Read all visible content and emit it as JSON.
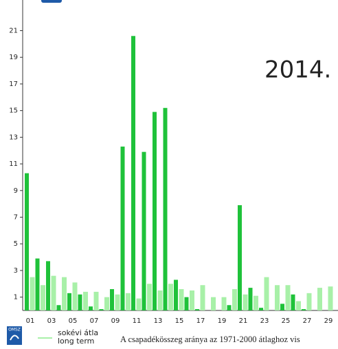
{
  "chart_data": {
    "type": "bar",
    "title": "2014.",
    "categories": [
      "01",
      null,
      "03",
      null,
      "05",
      null,
      "07",
      null,
      "09",
      null,
      "11",
      null,
      "13",
      null,
      "15",
      null,
      "17",
      null,
      "19",
      null,
      "21",
      null,
      "23",
      null,
      "25",
      null,
      "27",
      null,
      "29"
    ],
    "series": [
      {
        "color": "#1fc23a",
        "values": [
          10.3,
          3.9,
          3.7,
          0.4,
          1.3,
          1.2,
          0.3,
          0.1,
          1.6,
          12.3,
          20.6,
          11.9,
          14.9,
          15.2,
          2.3,
          1.0,
          0.1,
          0,
          0,
          0.4,
          7.9,
          1.7,
          0.2,
          0,
          0.5,
          1.2,
          0.1,
          0,
          0
        ]
      },
      {
        "color": "#a8f0a8",
        "values": [
          2.5,
          1.9,
          2.6,
          2.5,
          2.1,
          1.4,
          1.4,
          1.0,
          1.2,
          1.3,
          0.9,
          2.0,
          1.5,
          2.0,
          1.6,
          1.5,
          1.9,
          1.0,
          1.0,
          1.6,
          1.2,
          1.1,
          2.5,
          1.9,
          1.9,
          0.7,
          1.3,
          1.7,
          1.8
        ]
      }
    ],
    "ylim": [
      0,
      23.3
    ],
    "yticks": [
      1,
      3,
      5,
      7,
      9,
      11,
      13,
      15,
      17,
      19,
      21
    ],
    "legend": [
      "sokévi átla",
      "long term"
    ],
    "logo": "OMSZ",
    "footer": "A csapadékösszeg aránya az 1971-2000 átlaghoz vis"
  }
}
